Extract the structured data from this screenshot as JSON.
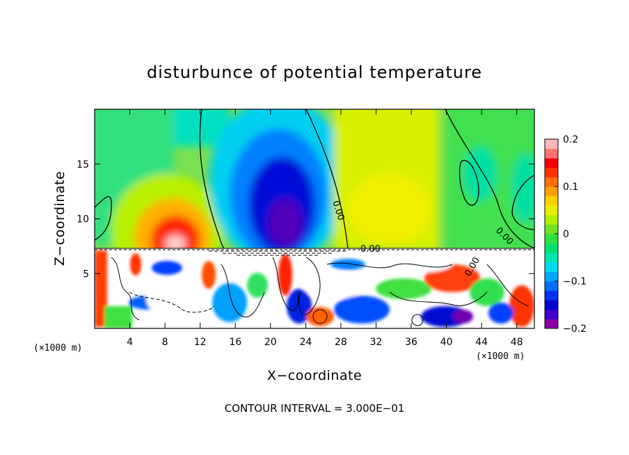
{
  "chart_data": {
    "type": "heatmap",
    "title": "disturbunce of potential temperature",
    "xlabel": "X−coordinate",
    "ylabel": "Z−coordinate",
    "x_unit": "(×1000 m)",
    "y_unit": "(×1000 m)",
    "xlim": [
      0,
      50
    ],
    "ylim": [
      0,
      20
    ],
    "x_ticks": [
      4,
      8,
      12,
      16,
      20,
      24,
      28,
      32,
      36,
      40,
      44,
      48
    ],
    "y_ticks": [
      5,
      10,
      15
    ],
    "colorbar": {
      "range": [
        -0.2,
        0.2
      ],
      "ticks": [
        0.2,
        0.1,
        0,
        -0.1,
        -0.2
      ],
      "tick_labels": [
        "0.2",
        "0.1",
        "0",
        "−0.1",
        "−0.2"
      ],
      "colors": [
        "#8a00a8",
        "#4000c8",
        "#0000d0",
        "#0030f0",
        "#0070ff",
        "#00a8ff",
        "#00d8f0",
        "#00e8b0",
        "#00e070",
        "#30e040",
        "#70e020",
        "#b0f000",
        "#e8f000",
        "#ffd000",
        "#ffa000",
        "#ff7000",
        "#ff3000",
        "#f00000",
        "#ff7070",
        "#ffb8b8"
      ]
    },
    "contour_labels": [
      "0.00",
      "0.00",
      "0.00",
      "0.00"
    ],
    "footer": "CONTOUR INTERVAL =  3.000E−01",
    "features": [
      {
        "kind": "warm anomaly",
        "x": 9,
        "z": 10,
        "value": 0.2
      },
      {
        "kind": "cold anomaly",
        "x": 19,
        "z": 12,
        "value": -0.2
      },
      {
        "kind": "turbulent boundary layer",
        "z_top": 7.2
      }
    ]
  }
}
